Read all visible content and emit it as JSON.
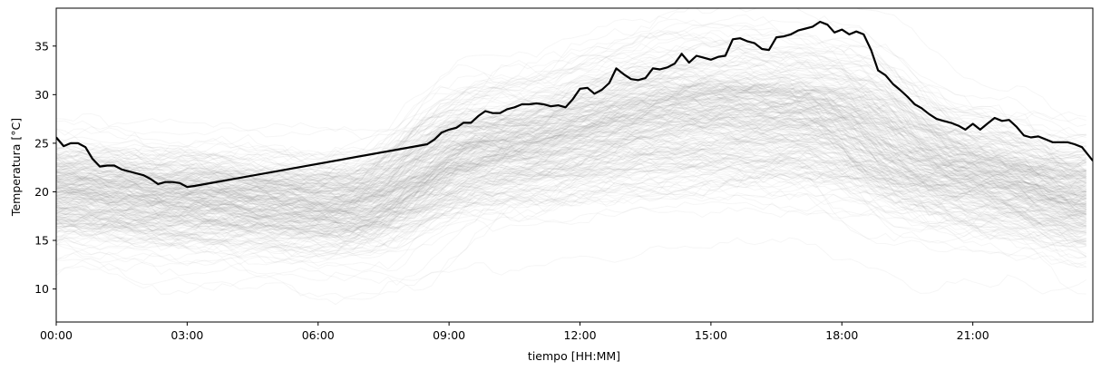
{
  "chart_data": {
    "type": "line",
    "title": "",
    "xlabel": "tiempo [HH:MM]",
    "ylabel": "Temperatura [°C]",
    "x_unit": "hours",
    "xlim": [
      0,
      23.75
    ],
    "ylim": [
      6.6,
      38.9
    ],
    "x_ticks": [
      0,
      3,
      6,
      9,
      12,
      15,
      18,
      21
    ],
    "x_tick_labels": [
      "00:00",
      "03:00",
      "06:00",
      "09:00",
      "12:00",
      "15:00",
      "18:00",
      "21:00"
    ],
    "y_ticks": [
      10,
      15,
      20,
      25,
      30,
      35
    ],
    "y_tick_labels": [
      "10",
      "15",
      "20",
      "25",
      "30",
      "35"
    ],
    "grid": false,
    "legend": false,
    "background_series": {
      "description_count": 300,
      "color": "#808080",
      "opacity": 0.07,
      "note": "many overlapping historical daily temperature curves drawn in faint gray"
    },
    "highlight_series": {
      "color": "#000000",
      "x": [
        0.0,
        0.17,
        0.33,
        0.5,
        0.67,
        0.83,
        1.0,
        1.17,
        1.33,
        1.5,
        1.67,
        2.0,
        2.17,
        2.33,
        2.5,
        2.67,
        2.83,
        3.0,
        3.17,
        8.5,
        8.67,
        8.83,
        9.0,
        9.17,
        9.33,
        9.5,
        9.67,
        9.83,
        10.0,
        10.17,
        10.33,
        10.5,
        10.67,
        10.83,
        11.0,
        11.17,
        11.33,
        11.5,
        11.67,
        11.83,
        12.0,
        12.17,
        12.33,
        12.5,
        12.67,
        12.83,
        13.0,
        13.17,
        13.33,
        13.5,
        13.67,
        13.83,
        14.0,
        14.17,
        14.33,
        14.5,
        14.67,
        14.83,
        15.0,
        15.17,
        15.33,
        15.5,
        15.67,
        15.83,
        16.0,
        16.17,
        16.33,
        16.5,
        16.67,
        16.83,
        17.0,
        17.17,
        17.33,
        17.5,
        17.67,
        17.83,
        18.0,
        18.17,
        18.33,
        18.5,
        18.67,
        18.83,
        19.0,
        19.17,
        19.33,
        19.5,
        19.67,
        19.83,
        20.0,
        20.17,
        20.33,
        20.5,
        20.67,
        20.83,
        21.0,
        21.17,
        21.33,
        21.5,
        21.67,
        21.83,
        22.0,
        22.17,
        22.33,
        22.5,
        22.67,
        22.83,
        23.0,
        23.17,
        23.33,
        23.5,
        23.75
      ],
      "y": [
        25.6,
        24.7,
        25.0,
        25.0,
        24.6,
        23.4,
        22.6,
        22.7,
        22.7,
        22.3,
        22.1,
        21.7,
        21.3,
        20.8,
        21.0,
        21.0,
        20.9,
        20.5,
        20.6,
        24.9,
        25.4,
        26.1,
        26.4,
        26.6,
        27.1,
        27.1,
        27.8,
        28.3,
        28.1,
        28.1,
        28.5,
        28.7,
        29.0,
        29.0,
        29.1,
        29.0,
        28.8,
        28.9,
        28.7,
        29.5,
        30.6,
        30.7,
        30.1,
        30.5,
        31.2,
        32.7,
        32.1,
        31.6,
        31.5,
        31.7,
        32.7,
        32.6,
        32.8,
        33.2,
        34.2,
        33.3,
        34.0,
        33.8,
        33.6,
        33.9,
        34.0,
        35.7,
        35.8,
        35.5,
        35.3,
        34.7,
        34.6,
        35.9,
        36.0,
        36.2,
        36.6,
        36.8,
        37.0,
        37.5,
        37.2,
        36.4,
        36.7,
        36.2,
        36.5,
        36.2,
        34.6,
        32.5,
        32.0,
        31.1,
        30.5,
        29.8,
        29.0,
        28.6,
        28.0,
        27.5,
        27.3,
        27.1,
        26.8,
        26.4,
        27.0,
        26.4,
        27.0,
        27.6,
        27.3,
        27.4,
        26.7,
        25.8,
        25.6,
        25.7,
        25.4,
        25.1,
        25.1,
        25.1,
        24.9,
        24.6,
        23.2
      ]
    }
  }
}
